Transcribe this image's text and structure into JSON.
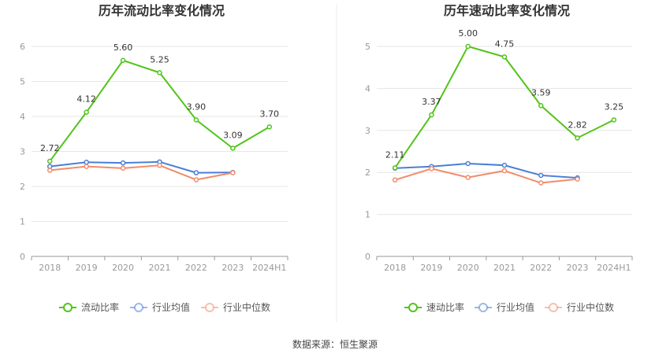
{
  "source": "数据来源：恒生聚源",
  "chart_data": [
    {
      "type": "line",
      "title": "历年流动比率变化情况",
      "categories": [
        "2018",
        "2019",
        "2020",
        "2021",
        "2022",
        "2023",
        "2024H1"
      ],
      "ylim": [
        0,
        6
      ],
      "yticks": [
        "0",
        "1",
        "2",
        "3",
        "4",
        "5",
        "6"
      ],
      "grid": true,
      "legend_position": "bottom",
      "series": [
        {
          "name": "流动比率",
          "color": "#52c41a",
          "labels": [
            "2.72",
            "4.12",
            "5.60",
            "5.25",
            "3.90",
            "3.09",
            "3.70"
          ],
          "values": [
            2.72,
            4.12,
            5.6,
            5.25,
            3.9,
            3.09,
            3.7
          ]
        },
        {
          "name": "行业均值",
          "color": "#4a7fd6",
          "values": [
            2.57,
            2.69,
            2.67,
            2.7,
            2.39,
            2.4,
            null
          ]
        },
        {
          "name": "行业中位数",
          "color": "#f28c6a",
          "values": [
            2.46,
            2.57,
            2.52,
            2.6,
            2.19,
            2.39,
            null
          ]
        }
      ]
    },
    {
      "type": "line",
      "title": "历年速动比率变化情况",
      "categories": [
        "2018",
        "2019",
        "2020",
        "2021",
        "2022",
        "2023",
        "2024H1"
      ],
      "ylim": [
        0,
        5
      ],
      "yticks": [
        "0",
        "1",
        "2",
        "3",
        "4",
        "5"
      ],
      "grid": true,
      "legend_position": "bottom",
      "series": [
        {
          "name": "速动比率",
          "color": "#52c41a",
          "labels": [
            "2.11",
            "3.37",
            "5.00",
            "4.75",
            "3.59",
            "2.82",
            "3.25"
          ],
          "values": [
            2.11,
            3.37,
            5.0,
            4.75,
            3.59,
            2.82,
            3.25
          ]
        },
        {
          "name": "行业均值",
          "color": "#4a7fd6",
          "values": [
            2.1,
            2.14,
            2.21,
            2.17,
            1.93,
            1.87,
            null
          ]
        },
        {
          "name": "行业中位数",
          "color": "#f28c6a",
          "values": [
            1.82,
            2.09,
            1.88,
            2.04,
            1.75,
            1.84,
            null
          ]
        }
      ]
    }
  ]
}
